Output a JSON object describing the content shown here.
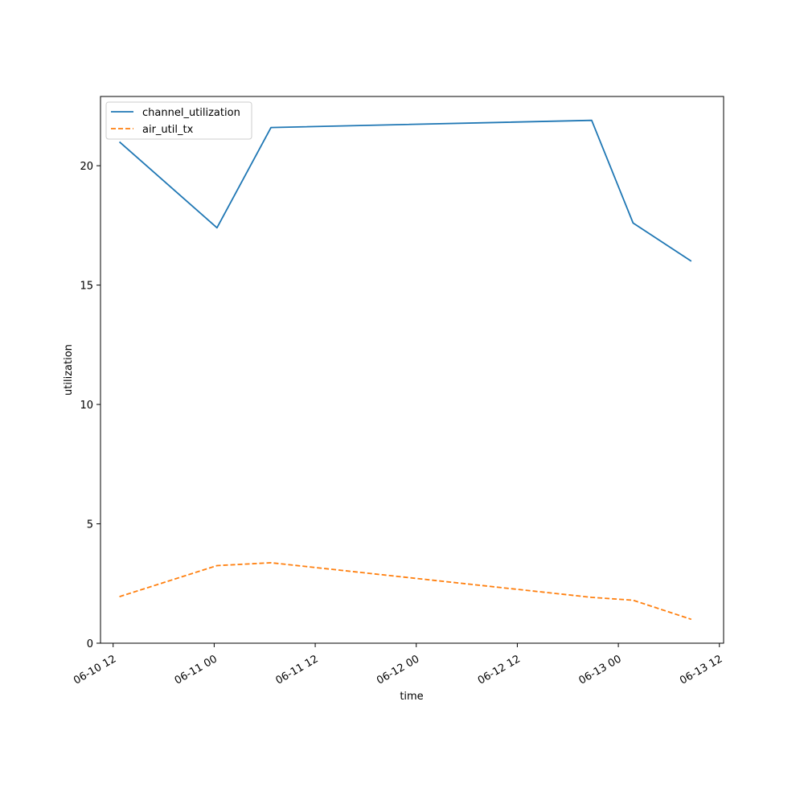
{
  "chart_data": {
    "type": "line",
    "title": "",
    "xlabel": "time",
    "ylabel": "utilization",
    "x_type": "datetime",
    "xlim": [
      "2024-06-10T10:30:00",
      "2024-06-13T12:30:00"
    ],
    "ylim": [
      0,
      22.9
    ],
    "x_ticks": [
      {
        "value": "2024-06-10T12:00:00",
        "label": "06-10 12"
      },
      {
        "value": "2024-06-11T00:00:00",
        "label": "06-11 00"
      },
      {
        "value": "2024-06-11T12:00:00",
        "label": "06-11 12"
      },
      {
        "value": "2024-06-12T00:00:00",
        "label": "06-12 00"
      },
      {
        "value": "2024-06-12T12:00:00",
        "label": "06-12 12"
      },
      {
        "value": "2024-06-13T00:00:00",
        "label": "06-13 00"
      },
      {
        "value": "2024-06-13T12:00:00",
        "label": "06-13 12"
      }
    ],
    "y_ticks": [
      {
        "value": 0,
        "label": "0"
      },
      {
        "value": 5,
        "label": "5"
      },
      {
        "value": 10,
        "label": "10"
      },
      {
        "value": 15,
        "label": "15"
      },
      {
        "value": 20,
        "label": "20"
      }
    ],
    "grid": false,
    "legend_position": "top-left",
    "series": [
      {
        "name": "channel_utilization",
        "color": "#1f77b4",
        "style": "solid",
        "points": [
          {
            "x": "2024-06-10T12:45:00",
            "y": 21.0
          },
          {
            "x": "2024-06-11T00:20:00",
            "y": 17.4
          },
          {
            "x": "2024-06-11T06:45:00",
            "y": 21.6
          },
          {
            "x": "2024-06-12T20:50:00",
            "y": 21.9
          },
          {
            "x": "2024-06-13T01:45:00",
            "y": 17.6
          },
          {
            "x": "2024-06-13T08:40:00",
            "y": 16.0
          }
        ]
      },
      {
        "name": "air_util_tx",
        "color": "#ff7f0e",
        "style": "dashed",
        "points": [
          {
            "x": "2024-06-10T12:45:00",
            "y": 1.95
          },
          {
            "x": "2024-06-11T00:20:00",
            "y": 3.25
          },
          {
            "x": "2024-06-11T06:45:00",
            "y": 3.37
          },
          {
            "x": "2024-06-12T20:50:00",
            "y": 1.92
          },
          {
            "x": "2024-06-13T01:45:00",
            "y": 1.8
          },
          {
            "x": "2024-06-13T08:40:00",
            "y": 1.0
          }
        ]
      }
    ]
  }
}
